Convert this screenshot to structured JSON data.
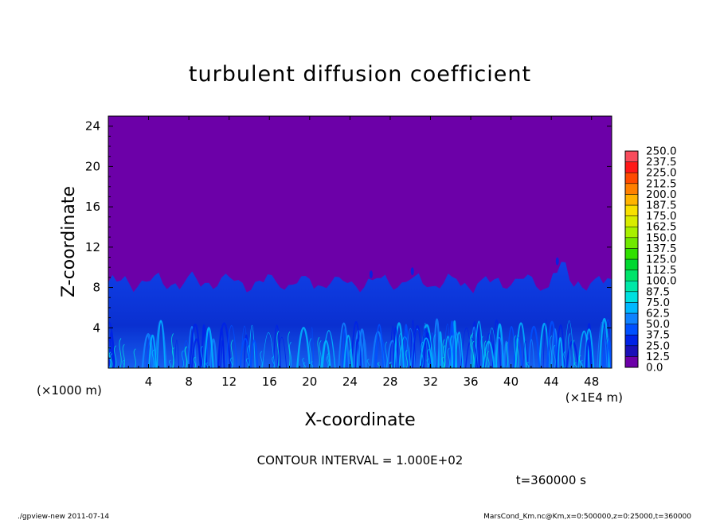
{
  "chart_data": {
    "type": "heatmap",
    "title": "turbulent diffusion coefficient",
    "xlabel": "X-coordinate",
    "ylabel": "Z-coordinate",
    "x_unit": "(×1E4 m)",
    "y_unit": "(×1000 m)",
    "x_ticks": [
      4,
      8,
      12,
      16,
      20,
      24,
      28,
      32,
      36,
      40,
      44,
      48
    ],
    "y_ticks": [
      4,
      8,
      12,
      16,
      20,
      24
    ],
    "xlim": [
      0,
      50
    ],
    "ylim": [
      0,
      25
    ],
    "colorbar": {
      "levels": [
        "0.0",
        "12.5",
        "25.0",
        "37.5",
        "50.0",
        "62.5",
        "75.0",
        "87.5",
        "100.0",
        "112.5",
        "125.0",
        "137.5",
        "150.0",
        "162.5",
        "175.0",
        "187.5",
        "200.0",
        "212.5",
        "225.0",
        "237.5",
        "250.0"
      ],
      "colors": [
        "#6c00a8",
        "#1a10b8",
        "#0022e6",
        "#0050ff",
        "#0f82ff",
        "#00b8ff",
        "#00e0e0",
        "#00e8a8",
        "#00e46a",
        "#00d830",
        "#30e000",
        "#70e800",
        "#a8f000",
        "#d8ec00",
        "#f8e000",
        "#ffb400",
        "#ff8000",
        "#ff4a00",
        "#ff1818",
        "#f84c5c"
      ]
    },
    "boundary_layer_top_approx": 8.5,
    "annotation": "CONTOUR INTERVAL = 1.000E+02",
    "time_label": "t=360000 s"
  },
  "footer": {
    "left": "./gpview-new  2011-07-14",
    "right": "MarsCond_Km.nc@Km,x=0:500000,z=0:25000,t=360000"
  }
}
